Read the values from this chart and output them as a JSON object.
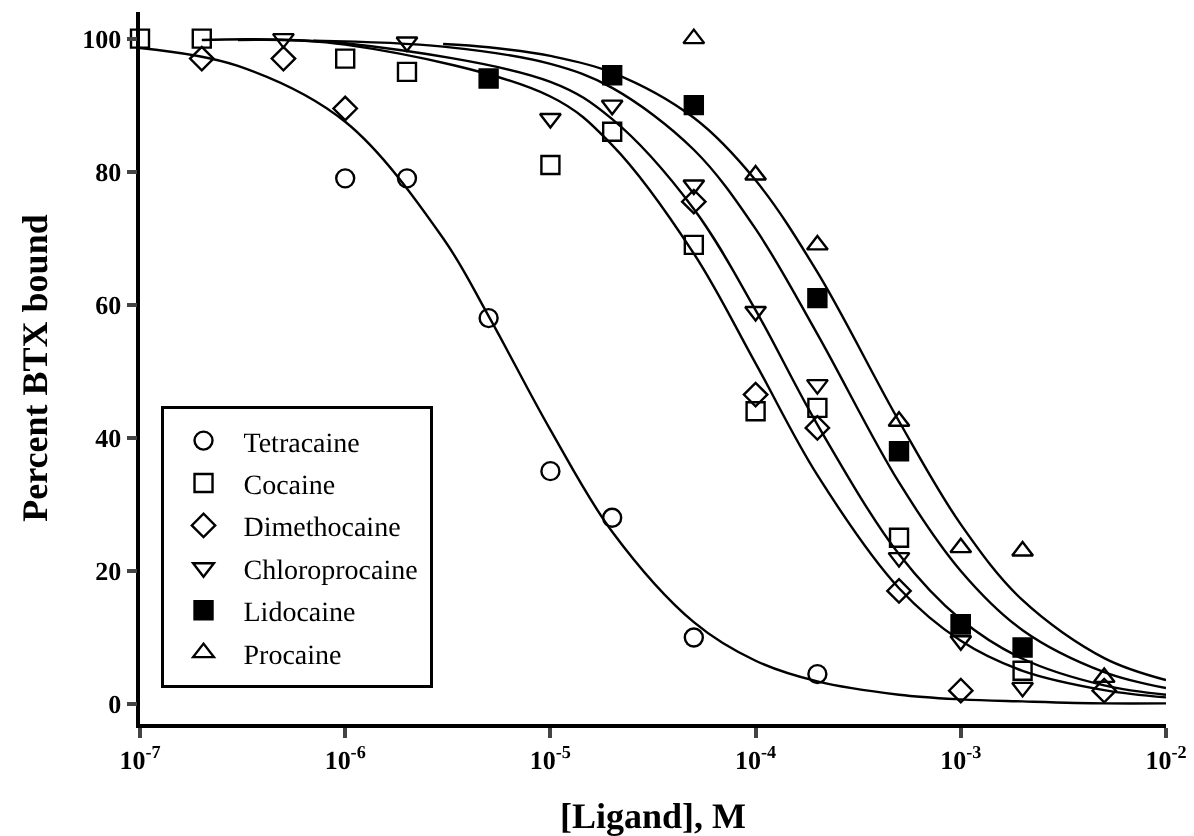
{
  "chart_data": {
    "type": "scatter",
    "xlabel": "[Ligand], M",
    "ylabel": "Percent BTX bound",
    "log": "x",
    "xlim": [
      1e-07,
      0.01
    ],
    "ylim": [
      -3,
      104
    ],
    "xticks": [
      {
        "value": 1e-07,
        "label": "10$^{-7}$"
      },
      {
        "value": 1e-06,
        "label": "10$^{-6}$"
      },
      {
        "value": 1e-05,
        "label": "10$^{-5}$"
      },
      {
        "value": 0.0001,
        "label": "10$^{-4}$"
      },
      {
        "value": 0.001,
        "label": "10$^{-3}$"
      },
      {
        "value": 0.01,
        "label": "10$^{-2}$"
      }
    ],
    "yticks": [
      0,
      20,
      40,
      60,
      80,
      100
    ],
    "grid": false,
    "legend": "bottom left",
    "series": [
      {
        "name": "Tetracaine",
        "color": "#000000",
        "marker": "circle-open",
        "x": [
          1e-06,
          2e-06,
          5e-06,
          1e-05,
          2e-05,
          5e-05,
          0.0002
        ],
        "values": [
          79,
          79,
          58,
          35,
          28,
          10,
          4.5
        ]
      },
      {
        "name": "Cocaine",
        "color": "#000000",
        "marker": "square-open",
        "x": [
          1e-07,
          2e-07,
          1e-06,
          2e-06,
          1e-05,
          2e-05,
          5e-05,
          0.0001,
          0.0002,
          0.0005,
          0.001,
          0.002
        ],
        "values": [
          100,
          100,
          97,
          95,
          81,
          86,
          69,
          44,
          44.5,
          25,
          12,
          5
        ]
      },
      {
        "name": "Dimethocaine",
        "color": "#000000",
        "marker": "diamond-open",
        "x": [
          2e-07,
          5e-07,
          1e-06,
          5e-05,
          0.0001,
          0.0002,
          0.0005,
          0.001,
          0.005
        ],
        "values": [
          97,
          97,
          89.5,
          75.5,
          46.5,
          41.5,
          17,
          2,
          2
        ]
      },
      {
        "name": "Chloroprocaine",
        "color": "#000000",
        "marker": "triangle-down-open",
        "x": [
          5e-07,
          2e-06,
          1e-05,
          2e-05,
          5e-05,
          0.0001,
          0.0002,
          0.0005,
          0.001,
          0.002
        ],
        "values": [
          100,
          99.5,
          88,
          90,
          78,
          59,
          48,
          22,
          9.5,
          2.5
        ]
      },
      {
        "name": "Lidocaine",
        "color": "#000000",
        "marker": "square",
        "x": [
          5e-06,
          2e-05,
          5e-05,
          0.0002,
          0.0005,
          0.001,
          0.002
        ],
        "values": [
          94,
          94.5,
          90,
          61,
          38,
          12,
          8.5
        ]
      },
      {
        "name": "Procaine",
        "color": "#000000",
        "marker": "triangle-up-open",
        "x": [
          5e-05,
          0.0001,
          0.0002,
          0.0005,
          0.001,
          0.002,
          0.005
        ],
        "values": [
          100,
          79.5,
          69,
          42.5,
          23.5,
          23,
          4
        ]
      },
      {
        "type": "line",
        "color": "#000000",
        "marker": "none",
        "x": [
          1e-07,
          3e-07,
          1e-06,
          3e-06,
          5e-06,
          1e-05,
          2e-05,
          5e-05,
          0.0001,
          0.0002,
          0.0005,
          0.001,
          0.002,
          0.005,
          0.01
        ],
        "values": [
          98.6,
          95.9,
          87.5,
          70,
          58.3,
          41.2,
          25.9,
          12.3,
          6.5,
          3.4,
          1.4,
          0.7,
          0.4,
          0.1,
          0.1
        ]
      },
      {
        "type": "line",
        "color": "#000000",
        "marker": "none",
        "x": [
          2e-07,
          1e-06,
          1e-05,
          2e-05,
          5e-05,
          0.0001,
          0.0002,
          0.0005,
          0.001,
          0.002,
          0.005,
          0.01
        ],
        "values": [
          99.8,
          99.1,
          91.3,
          84,
          67.7,
          51.2,
          34.4,
          17.4,
          9.5,
          5,
          2.1,
          1
        ]
      },
      {
        "type": "line",
        "color": "#000000",
        "marker": "none",
        "x": [
          3e-07,
          1e-06,
          1e-05,
          2e-05,
          5e-05,
          0.0001,
          0.0002,
          0.0005,
          0.001,
          0.002,
          0.005,
          0.01
        ],
        "values": [
          99.8,
          99.3,
          93.5,
          87.9,
          74.4,
          59.2,
          42,
          22.5,
          12.7,
          6.8,
          2.8,
          1.4
        ]
      },
      {
        "type": "line",
        "color": "#000000",
        "marker": "none",
        "x": [
          7e-07,
          3e-06,
          1e-05,
          2e-05,
          5e-05,
          0.0001,
          0.0002,
          0.0005,
          0.001,
          0.002,
          0.005,
          0.01
        ],
        "values": [
          99.7,
          98.8,
          96.2,
          92.6,
          83.3,
          71.4,
          55.6,
          33.3,
          20,
          11.1,
          4.8,
          2.4
        ]
      },
      {
        "type": "line",
        "color": "#000000",
        "marker": "none",
        "x": [
          3e-06,
          5e-06,
          1e-05,
          2e-05,
          5e-05,
          0.0001,
          0.0002,
          0.0005,
          0.001,
          0.002,
          0.005,
          0.01
        ],
        "values": [
          99.2,
          98.7,
          97.4,
          94.9,
          88.1,
          78.7,
          64.9,
          42.5,
          27,
          15.6,
          6.9,
          3.6
        ]
      }
    ]
  }
}
